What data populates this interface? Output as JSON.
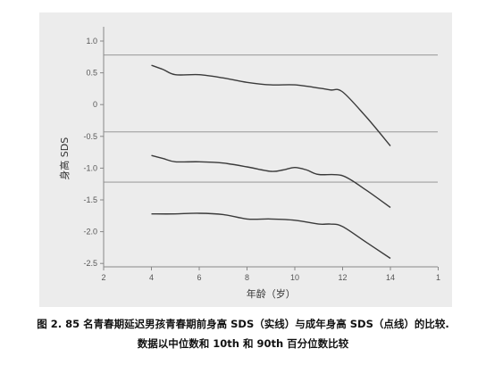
{
  "chart_data": {
    "type": "line",
    "title": "",
    "xlabel": "年龄（岁）",
    "ylabel": "身高 SDS",
    "xlim": [
      2,
      16
    ],
    "ylim": [
      -2.5,
      1.0
    ],
    "x_ticks": [
      "2",
      "4",
      "6",
      "8",
      "10",
      "12",
      "14",
      "1"
    ],
    "y_ticks": [
      "1.0",
      "0.5",
      "0",
      "-0.5",
      "-1.0",
      "-1.5",
      "-2.0",
      "-2.5"
    ],
    "grid": false,
    "series": [
      {
        "style": "solid",
        "x": [
          4,
          4.5,
          5,
          6,
          7,
          8,
          9,
          10,
          11,
          11.5,
          12,
          13,
          14
        ],
        "values": [
          0.62,
          0.55,
          0.47,
          0.47,
          0.42,
          0.35,
          0.31,
          0.31,
          0.26,
          0.23,
          0.2,
          -0.2,
          -0.65
        ]
      },
      {
        "style": "solid",
        "x": [
          4,
          4.5,
          5,
          6,
          7,
          8,
          9,
          9.5,
          10,
          10.5,
          11,
          12,
          13,
          14
        ],
        "values": [
          -0.8,
          -0.85,
          -0.9,
          -0.9,
          -0.92,
          -0.98,
          -1.05,
          -1.03,
          -0.99,
          -1.03,
          -1.1,
          -1.12,
          -1.35,
          -1.62
        ]
      },
      {
        "style": "solid",
        "x": [
          4,
          5,
          6,
          7,
          8,
          9,
          10,
          11,
          11.5,
          12,
          13,
          14
        ],
        "values": [
          -1.72,
          -1.72,
          -1.71,
          -1.73,
          -1.8,
          -1.8,
          -1.82,
          -1.88,
          -1.88,
          -1.92,
          -2.17,
          -2.42
        ]
      }
    ],
    "reference_lines": [
      {
        "style": "dotted",
        "y": 0.78
      },
      {
        "style": "dotted",
        "y": -0.43
      },
      {
        "style": "dotted",
        "y": -1.22
      }
    ]
  },
  "caption": {
    "line1": "图 2. 85 名青春期延迟男孩青春期前身高 SDS（实线）与成年身高 SDS（点线）的比较.",
    "line2": "数据以中位数和 10th 和 90th 百分位数比较"
  }
}
